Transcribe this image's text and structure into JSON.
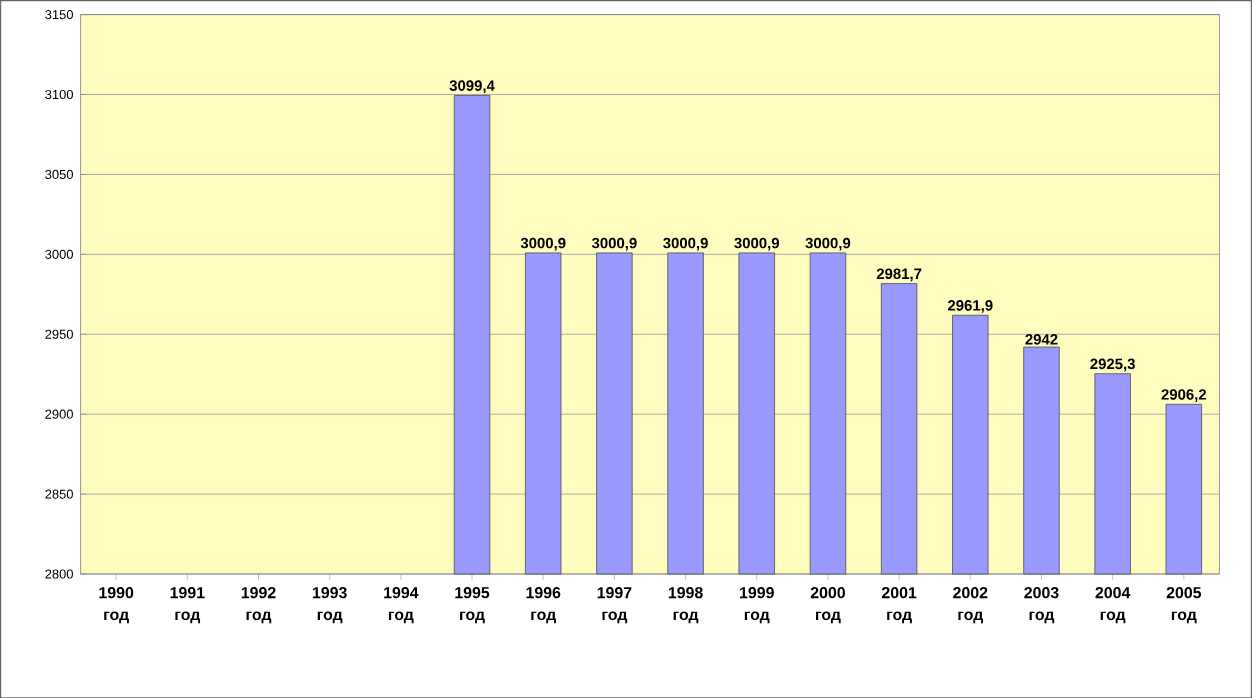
{
  "chart_data": {
    "type": "bar",
    "categories": [
      "1990 год",
      "1991 год",
      "1992 год",
      "1993 год",
      "1994 год",
      "1995 год",
      "1996 год",
      "1997 год",
      "1998 год",
      "1999 год",
      "2000 год",
      "2001 год",
      "2002 год",
      "2003 год",
      "2004 год",
      "2005 год"
    ],
    "values": [
      null,
      null,
      null,
      null,
      null,
      3099.4,
      3000.9,
      3000.9,
      3000.9,
      3000.9,
      3000.9,
      2981.7,
      2961.9,
      2942,
      2925.3,
      2906.2
    ],
    "value_labels": [
      null,
      null,
      null,
      null,
      null,
      "3099,4",
      "3000,9",
      "3000,9",
      "3000,9",
      "3000,9",
      "3000,9",
      "2981,7",
      "2961,9",
      "2942",
      "2925,3",
      "2906,2"
    ],
    "color": "#9999ff",
    "ylim": [
      2800,
      3150
    ],
    "yticks": [
      2800,
      2850,
      2900,
      2950,
      3000,
      3050,
      3100,
      3150
    ],
    "grid": "y"
  }
}
